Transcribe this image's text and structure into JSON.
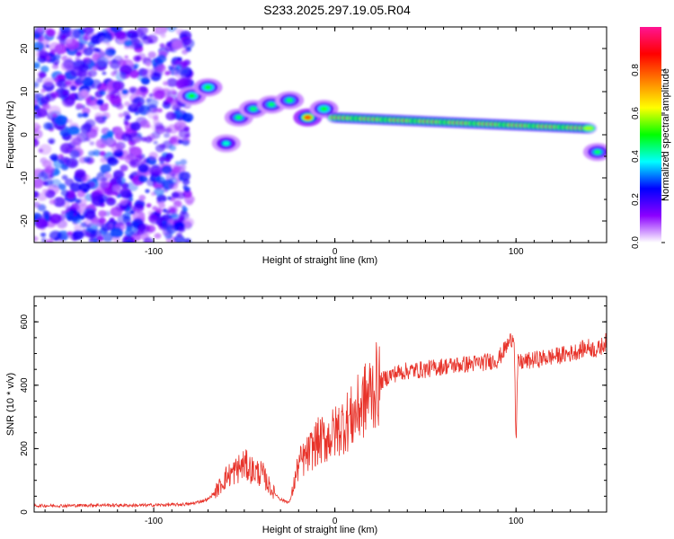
{
  "figure": {
    "title": "S233.2025.297.19.05.R04"
  },
  "chart_data": [
    {
      "type": "heatmap",
      "xlabel": "Height of straight line (km)",
      "ylabel": "Frequency (Hz)",
      "xlim": [
        -166,
        150
      ],
      "ylim": [
        -25,
        25
      ],
      "xticks": [
        -100,
        0,
        100
      ],
      "yticks": [
        -20,
        -10,
        0,
        10,
        20
      ],
      "colorbar": {
        "label": "Normalized spectral amplitude",
        "range": [
          0,
          1
        ],
        "ticks": [
          "0.0",
          "0.2",
          "0.4",
          "0.6",
          "0.8"
        ],
        "tick_values": [
          0.0,
          0.2,
          0.4,
          0.6,
          0.8
        ],
        "colors": [
          "#ffffff",
          "#8b00ff",
          "#0000ff",
          "#00ffff",
          "#00ff00",
          "#ffff00",
          "#ff8000",
          "#ff0000",
          "#ff1493"
        ]
      },
      "features": [
        {
          "kind": "noise",
          "x_range": [
            -166,
            -80
          ],
          "y_range": [
            -25,
            25
          ],
          "amplitude": 0.25
        },
        {
          "kind": "blob",
          "x": -79,
          "y": 9,
          "amplitude": 0.5
        },
        {
          "kind": "blob",
          "x": -70,
          "y": 11,
          "amplitude": 0.5
        },
        {
          "kind": "blob",
          "x": -60,
          "y": -2,
          "amplitude": 0.4
        },
        {
          "kind": "blob",
          "x": -53,
          "y": 4,
          "amplitude": 0.45
        },
        {
          "kind": "blob",
          "x": -45,
          "y": 6,
          "amplitude": 0.45
        },
        {
          "kind": "blob",
          "x": -35,
          "y": 7,
          "amplitude": 0.45
        },
        {
          "kind": "blob",
          "x": -25,
          "y": 8,
          "amplitude": 0.45
        },
        {
          "kind": "blob",
          "x": -15,
          "y": 4,
          "amplitude": 0.8
        },
        {
          "kind": "blob",
          "x": -6,
          "y": 6,
          "amplitude": 0.5
        },
        {
          "kind": "band",
          "x_range": [
            0,
            140
          ],
          "y_start": 4,
          "y_end": 1.5,
          "amplitude": 0.95
        },
        {
          "kind": "blob",
          "x": 145,
          "y": -4,
          "amplitude": 0.45
        }
      ]
    },
    {
      "type": "line",
      "xlabel": "Height of straight line (km)",
      "ylabel": "SNR (10 * v/v)",
      "xlim": [
        -166,
        150
      ],
      "ylim": [
        0,
        680
      ],
      "xticks": [
        -100,
        0,
        100
      ],
      "yticks": [
        0,
        200,
        400,
        600
      ],
      "color": "#e8332a",
      "x": [
        -166,
        -150,
        -130,
        -110,
        -90,
        -80,
        -70,
        -65,
        -60,
        -55,
        -50,
        -45,
        -40,
        -35,
        -30,
        -25,
        -20,
        -15,
        -10,
        -5,
        0,
        5,
        10,
        15,
        20,
        25,
        30,
        35,
        40,
        50,
        60,
        70,
        80,
        90,
        99,
        100,
        101,
        110,
        120,
        130,
        140,
        145,
        150
      ],
      "values": [
        20,
        20,
        22,
        21,
        23,
        25,
        40,
        70,
        110,
        130,
        150,
        130,
        120,
        70,
        40,
        30,
        150,
        180,
        220,
        230,
        250,
        280,
        300,
        340,
        380,
        410,
        430,
        440,
        445,
        450,
        460,
        465,
        470,
        480,
        560,
        200,
        470,
        480,
        490,
        500,
        520,
        510,
        540
      ]
    }
  ]
}
